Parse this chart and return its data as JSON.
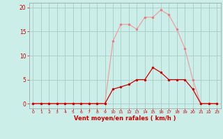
{
  "x": [
    0,
    1,
    2,
    3,
    4,
    5,
    6,
    7,
    8,
    9,
    10,
    11,
    12,
    13,
    14,
    15,
    16,
    17,
    18,
    19,
    20,
    21,
    22,
    23
  ],
  "y_rafales": [
    0,
    0,
    0,
    0,
    0,
    0,
    0,
    0,
    0,
    0,
    13,
    16.5,
    16.5,
    15.5,
    18,
    18,
    19.5,
    18.5,
    15.5,
    11.5,
    5,
    0,
    0,
    0
  ],
  "y_moyen": [
    0,
    0,
    0,
    0,
    0,
    0,
    0,
    0,
    0,
    0,
    3,
    3.5,
    4,
    5,
    5,
    7.5,
    6.5,
    5,
    5,
    5,
    3,
    0,
    0,
    0
  ],
  "color_rafales": "#f0a0a0",
  "color_moyen": "#cc0000",
  "marker_rafales": "#e08080",
  "marker_moyen": "#cc0000",
  "xlabel": "Vent moyen/en rafales ( km/h )",
  "xlim": [
    -0.5,
    23.5
  ],
  "ylim": [
    -1,
    21
  ],
  "yticks": [
    0,
    5,
    10,
    15,
    20
  ],
  "xticks": [
    0,
    1,
    2,
    3,
    4,
    5,
    6,
    7,
    8,
    9,
    10,
    11,
    12,
    13,
    14,
    15,
    16,
    17,
    18,
    19,
    20,
    21,
    22,
    23
  ],
  "bg_color": "#cceee8",
  "grid_color": "#aaccc8",
  "tick_color": "#cc0000",
  "label_color": "#cc0000"
}
